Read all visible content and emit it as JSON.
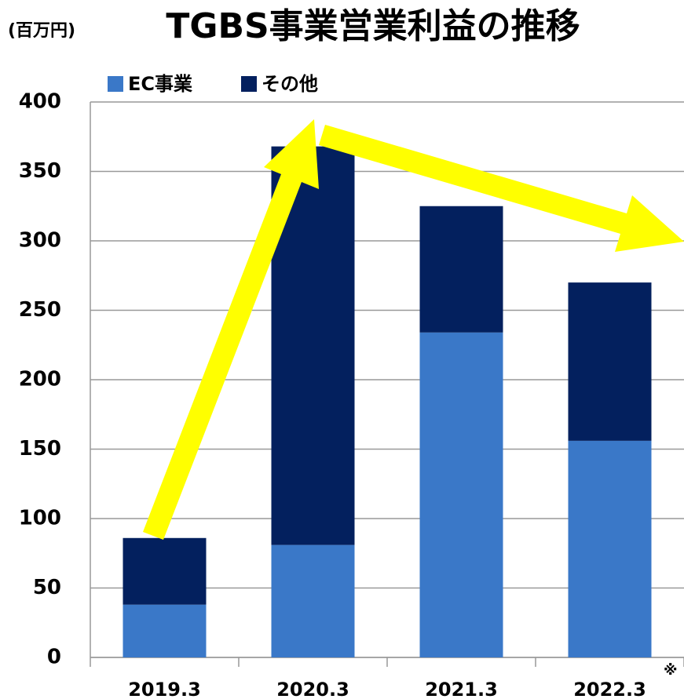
{
  "chart_data": {
    "type": "stacked_bar",
    "title": "TGBS事業営業利益の推移",
    "unit_label": "(百万円)",
    "categories": [
      "2019.3",
      "2020.3",
      "2021.3",
      "2022.3"
    ],
    "series": [
      {
        "name": "EC事業",
        "color": "#3a78c8",
        "values": [
          38,
          81,
          234,
          156
        ]
      },
      {
        "name": "その他",
        "color": "#03205e",
        "values": [
          48,
          287,
          91,
          114
        ]
      }
    ],
    "annotation": "※",
    "ylim": [
      0,
      400
    ],
    "yticks": [
      0,
      50,
      100,
      150,
      200,
      250,
      300,
      350,
      400
    ],
    "grid": true,
    "legend": "top"
  }
}
